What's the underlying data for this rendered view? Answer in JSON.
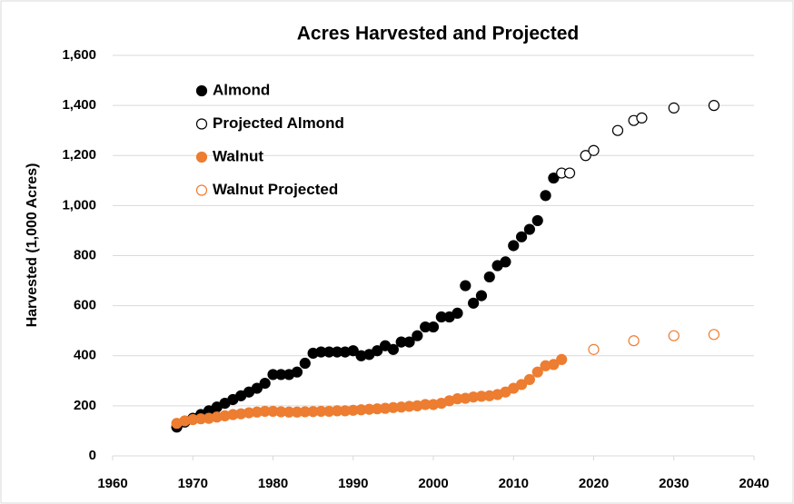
{
  "chart_data": {
    "type": "scatter",
    "title": "Acres Harvested and Projected",
    "ylabel": "Harvested (1,000 Acres)",
    "xlim": [
      1960,
      2040
    ],
    "xticks": [
      1960,
      1970,
      1980,
      1990,
      2000,
      2010,
      2020,
      2030,
      2040
    ],
    "ylim": [
      0,
      1600
    ],
    "yticks": [
      0,
      200,
      400,
      600,
      800,
      {
        "value": 1000,
        "label": "1,000"
      },
      {
        "value": 1200,
        "label": "1,200"
      },
      {
        "value": 1400,
        "label": "1,400"
      },
      {
        "value": 1600,
        "label": "1,600"
      }
    ],
    "grid": true,
    "legend": "upper left",
    "series": [
      {
        "name": "Almond",
        "color": "#000000",
        "marker": "filled",
        "x": [
          1968,
          1969,
          1970,
          1971,
          1972,
          1973,
          1974,
          1975,
          1976,
          1977,
          1978,
          1979,
          1980,
          1981,
          1982,
          1983,
          1984,
          1985,
          1986,
          1987,
          1988,
          1989,
          1990,
          1991,
          1992,
          1993,
          1994,
          1995,
          1996,
          1997,
          1998,
          1999,
          2000,
          2001,
          2002,
          2003,
          2004,
          2005,
          2006,
          2007,
          2008,
          2009,
          2010,
          2011,
          2012,
          2013,
          2014,
          2015
        ],
        "values": [
          115,
          135,
          150,
          165,
          180,
          195,
          210,
          225,
          240,
          255,
          270,
          290,
          325,
          325,
          325,
          335,
          370,
          410,
          415,
          415,
          415,
          415,
          420,
          400,
          405,
          420,
          440,
          425,
          455,
          455,
          480,
          515,
          515,
          555,
          555,
          570,
          680,
          610,
          640,
          715,
          760,
          775,
          840,
          875,
          905,
          940,
          1040,
          1110
        ]
      },
      {
        "name": "Projected Almond",
        "color": "#000000",
        "marker": "open",
        "x": [
          2016,
          2017,
          2019,
          2020,
          2023,
          2025,
          2026,
          2030,
          2035
        ],
        "values": [
          1130,
          1130,
          1200,
          1220,
          1300,
          1340,
          1350,
          1390,
          1400
        ]
      },
      {
        "name": "Walnut",
        "color": "#ed7d31",
        "marker": "filled",
        "x": [
          1968,
          1969,
          1970,
          1971,
          1972,
          1973,
          1974,
          1975,
          1976,
          1977,
          1978,
          1979,
          1980,
          1981,
          1982,
          1983,
          1984,
          1985,
          1986,
          1987,
          1988,
          1989,
          1990,
          1991,
          1992,
          1993,
          1994,
          1995,
          1996,
          1997,
          1998,
          1999,
          2000,
          2001,
          2002,
          2003,
          2004,
          2005,
          2006,
          2007,
          2008,
          2009,
          2010,
          2011,
          2012,
          2013,
          2014,
          2015,
          2016
        ],
        "values": [
          130,
          140,
          145,
          148,
          150,
          155,
          160,
          165,
          168,
          172,
          175,
          178,
          178,
          176,
          175,
          175,
          176,
          177,
          178,
          178,
          180,
          180,
          182,
          184,
          186,
          188,
          190,
          193,
          195,
          198,
          200,
          205,
          205,
          210,
          220,
          228,
          230,
          235,
          238,
          240,
          245,
          255,
          270,
          285,
          305,
          335,
          360,
          365,
          385
        ]
      },
      {
        "name": "Walnut Projected",
        "color": "#ed7d31",
        "marker": "open",
        "x": [
          2020,
          2025,
          2030,
          2035
        ],
        "values": [
          425,
          460,
          480,
          485
        ]
      }
    ]
  }
}
